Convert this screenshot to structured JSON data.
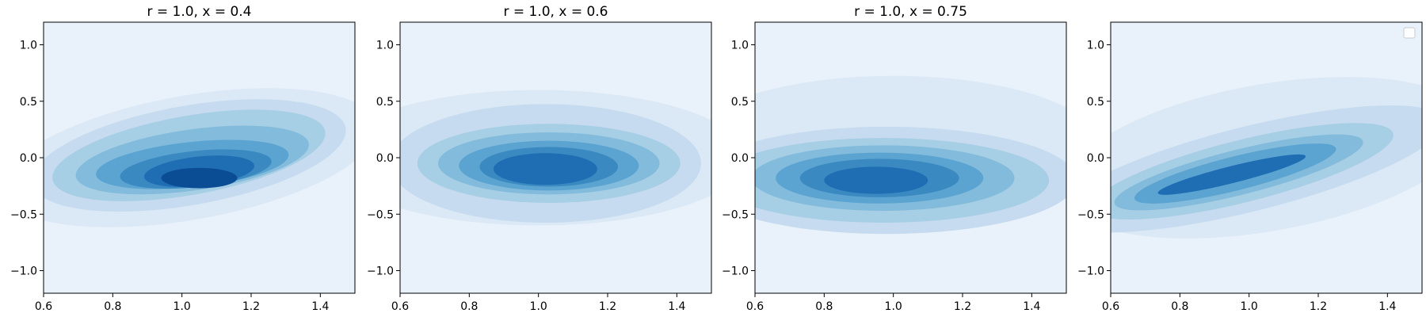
{
  "chart_data": [
    {
      "type": "contourf",
      "title": "r = 1.0, x = 0.4",
      "xlabel": "",
      "ylabel": "",
      "xlim": [
        0.6,
        1.5
      ],
      "ylim": [
        -1.2,
        1.2
      ],
      "xticks": [
        0.6,
        0.8,
        1.0,
        1.2,
        1.4
      ],
      "xtick_labels": [
        "0.6",
        "0.8",
        "1.0",
        "1.2",
        "1.4"
      ],
      "yticks": [
        -1.0,
        -0.5,
        0.0,
        0.5,
        1.0
      ],
      "ytick_labels": [
        "−1.0",
        "−0.5",
        "0.0",
        "0.5",
        "1.0"
      ],
      "colormap": "Blues",
      "levels": 9,
      "density_peak": {
        "x": 1.04,
        "y": -0.2
      },
      "contours": [
        {
          "level": 1,
          "cx": 1.02,
          "cy": 0.0,
          "rx": 0.55,
          "ry": 1.1,
          "rot": -10
        },
        {
          "level": 2,
          "cx": 1.02,
          "cy": 0.02,
          "rx": 0.46,
          "ry": 0.88,
          "rot": -10
        },
        {
          "level": 3,
          "cx": 1.02,
          "cy": 0.02,
          "rx": 0.4,
          "ry": 0.7,
          "rot": -10
        },
        {
          "level": 4,
          "cx": 1.03,
          "cy": -0.02,
          "rx": 0.34,
          "ry": 0.54,
          "rot": -8
        },
        {
          "level": 5,
          "cx": 1.03,
          "cy": -0.06,
          "rx": 0.28,
          "ry": 0.4,
          "rot": -6
        },
        {
          "level": 6,
          "cx": 1.04,
          "cy": -0.1,
          "rx": 0.22,
          "ry": 0.32,
          "rot": -6
        },
        {
          "level": 7,
          "cx": 1.05,
          "cy": -0.12,
          "rx": 0.16,
          "ry": 0.26,
          "rot": -6
        },
        {
          "level": 8,
          "cx": 1.05,
          "cy": -0.18,
          "rx": 0.11,
          "ry": 0.18,
          "rot": 0
        }
      ]
    },
    {
      "type": "contourf",
      "title": "r = 1.0, x = 0.6",
      "xlabel": "",
      "ylabel": "",
      "xlim": [
        0.6,
        1.5
      ],
      "ylim": [
        -1.2,
        1.2
      ],
      "xticks": [
        0.6,
        0.8,
        1.0,
        1.2,
        1.4
      ],
      "xtick_labels": [
        "0.6",
        "0.8",
        "1.0",
        "1.2",
        "1.4"
      ],
      "yticks": [
        -1.0,
        -0.5,
        0.0,
        0.5,
        1.0
      ],
      "ytick_labels": [
        "−1.0",
        "−0.5",
        "0.0",
        "0.5",
        "1.0"
      ],
      "colormap": "Blues",
      "levels": 9,
      "density_peak": {
        "x": 1.02,
        "y": -0.1
      },
      "contours": [
        {
          "level": 1,
          "cx": 1.0,
          "cy": 0.0,
          "rx": 0.6,
          "ry": 1.2,
          "rot": 0
        },
        {
          "level": 2,
          "cx": 1.02,
          "cy": -0.05,
          "rx": 0.45,
          "ry": 1.05,
          "rot": 0
        },
        {
          "level": 3,
          "cx": 1.03,
          "cy": -0.05,
          "rx": 0.38,
          "ry": 0.7,
          "rot": 0
        },
        {
          "level": 4,
          "cx": 1.03,
          "cy": -0.05,
          "rx": 0.32,
          "ry": 0.55,
          "rot": 0
        },
        {
          "level": 5,
          "cx": 1.03,
          "cy": -0.07,
          "rx": 0.26,
          "ry": 0.44,
          "rot": 0
        },
        {
          "level": 6,
          "cx": 1.03,
          "cy": -0.08,
          "rx": 0.2,
          "ry": 0.35,
          "rot": 0
        },
        {
          "level": 7,
          "cx": 1.02,
          "cy": -0.1,
          "rx": 0.15,
          "ry": 0.28,
          "rot": 0
        }
      ]
    },
    {
      "type": "contourf",
      "title": "r = 1.0, x = 0.75",
      "xlabel": "",
      "ylabel": "",
      "xlim": [
        0.6,
        1.5
      ],
      "ylim": [
        -1.2,
        1.2
      ],
      "xticks": [
        0.6,
        0.8,
        1.0,
        1.2,
        1.4
      ],
      "xtick_labels": [
        "0.6",
        "0.8",
        "1.0",
        "1.2",
        "1.4"
      ],
      "yticks": [
        -1.0,
        -0.5,
        0.0,
        0.5,
        1.0
      ],
      "ytick_labels": [
        "−1.0",
        "−0.5",
        "0.0",
        "0.5",
        "1.0"
      ],
      "colormap": "Blues",
      "levels": 9,
      "density_peak": {
        "x": 0.95,
        "y": -0.2
      },
      "contours": [
        {
          "level": 1,
          "cx": 1.0,
          "cy": 0.1,
          "rx": 0.6,
          "ry": 1.25,
          "rot": 0
        },
        {
          "level": 2,
          "cx": 0.98,
          "cy": -0.2,
          "rx": 0.55,
          "ry": 0.95,
          "rot": 0
        },
        {
          "level": 3,
          "cx": 0.97,
          "cy": -0.2,
          "rx": 0.48,
          "ry": 0.75,
          "rot": 0
        },
        {
          "level": 4,
          "cx": 0.97,
          "cy": -0.18,
          "rx": 0.38,
          "ry": 0.58,
          "rot": 0
        },
        {
          "level": 5,
          "cx": 0.96,
          "cy": -0.18,
          "rx": 0.3,
          "ry": 0.45,
          "rot": 0
        },
        {
          "level": 6,
          "cx": 0.96,
          "cy": -0.18,
          "rx": 0.23,
          "ry": 0.34,
          "rot": 0
        },
        {
          "level": 7,
          "cx": 0.95,
          "cy": -0.2,
          "rx": 0.15,
          "ry": 0.24,
          "rot": 0
        }
      ]
    },
    {
      "type": "contourf",
      "title": "",
      "xlabel": "",
      "ylabel": "",
      "xlim": [
        0.6,
        1.5
      ],
      "ylim": [
        -1.2,
        1.2
      ],
      "xticks": [
        0.6,
        0.8,
        1.0,
        1.2,
        1.4
      ],
      "xtick_labels": [
        "0.6",
        "0.8",
        "1.0",
        "1.2",
        "1.4"
      ],
      "yticks": [
        -1.0,
        -0.5,
        0.0,
        0.5,
        1.0
      ],
      "ytick_labels": [
        "−1.0",
        "−0.5",
        "0.0",
        "0.5",
        "1.0"
      ],
      "colormap": "Blues",
      "levels": 9,
      "legend": {
        "placement": "top-right",
        "entries": []
      },
      "density_peak": {
        "x": 0.95,
        "y": -0.15
      },
      "contours": [
        {
          "level": 1,
          "cx": 1.05,
          "cy": 0.0,
          "rx": 0.6,
          "ry": 1.3,
          "rot": -10
        },
        {
          "level": 2,
          "cx": 1.0,
          "cy": -0.1,
          "rx": 0.58,
          "ry": 0.75,
          "rot": -14
        },
        {
          "level": 3,
          "cx": 0.98,
          "cy": -0.12,
          "rx": 0.45,
          "ry": 0.55,
          "rot": -14
        },
        {
          "level": 4,
          "cx": 0.97,
          "cy": -0.13,
          "rx": 0.37,
          "ry": 0.4,
          "rot": -14
        },
        {
          "level": 5,
          "cx": 0.96,
          "cy": -0.14,
          "rx": 0.3,
          "ry": 0.3,
          "rot": -14
        },
        {
          "level": 7,
          "cx": 0.95,
          "cy": -0.15,
          "rx": 0.22,
          "ry": 0.15,
          "rot": -14
        }
      ]
    }
  ],
  "colors": {
    "levels": [
      "#f7fbff",
      "#e9f2fa",
      "#dbe9f6",
      "#c6dbef",
      "#a6cee4",
      "#82bbdb",
      "#5ba3d0",
      "#3a89c1",
      "#1f6eb3",
      "#0b4d94"
    ]
  }
}
